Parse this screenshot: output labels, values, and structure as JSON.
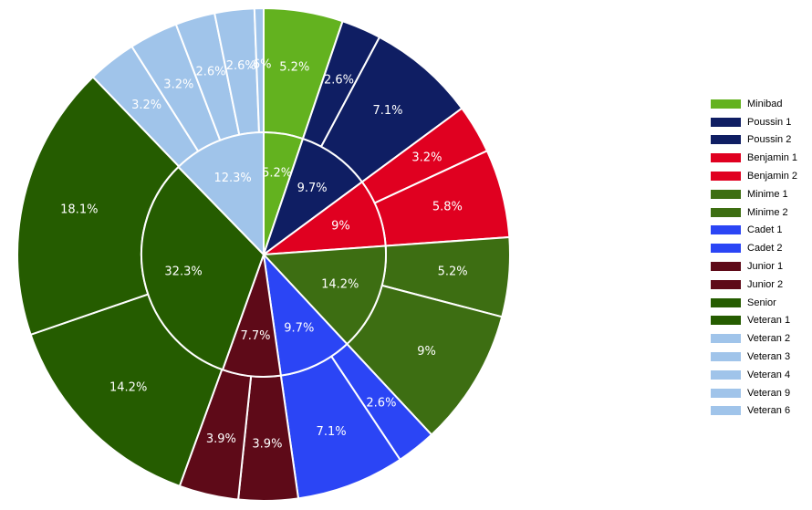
{
  "chart_data": {
    "type": "pie",
    "subtype": "nested-donut",
    "legend_position": "right",
    "outer_ring": {
      "categories": [
        "Minibad",
        "Poussin 1",
        "Poussin 2",
        "Benjamin 1",
        "Benjamin 2",
        "Minime 1",
        "Minime 2",
        "Cadet 1",
        "Cadet 2",
        "Junior 1",
        "Junior 2",
        "Senior",
        "Veteran 1",
        "Veteran 2",
        "Veteran 3",
        "Veteran 4",
        "Veteran 9",
        "Veteran 6"
      ],
      "values": [
        5.2,
        2.6,
        7.1,
        3.2,
        5.8,
        5.2,
        9,
        2.6,
        7.1,
        3.9,
        3.9,
        14.2,
        18.1,
        3.2,
        3.2,
        2.6,
        2.6,
        0.6
      ],
      "labels": [
        "5.2%",
        "2.6%",
        "7.1%",
        "3.2%",
        "5.8%",
        "5.2%",
        "9%",
        "2.6%",
        "7.1%",
        "3.9%",
        "3.9%",
        "14.2%",
        "18.1%",
        "3.2%",
        "3.2%",
        "2.6%",
        "2.6%",
        ".6%"
      ],
      "colors": [
        "#63b21f",
        "#0f1e63",
        "#0f1e63",
        "#e00020",
        "#e00020",
        "#3d6e12",
        "#3d6e12",
        "#2b45f5",
        "#2b45f5",
        "#5e0a18",
        "#5e0a18",
        "#255c00",
        "#255c00",
        "#a0c4ea",
        "#a0c4ea",
        "#a0c4ea",
        "#a0c4ea",
        "#a0c4ea"
      ]
    },
    "inner_ring": {
      "categories": [
        "Minibad",
        "Poussin",
        "Benjamin",
        "Minime",
        "Cadet",
        "Junior",
        "Senior/Veteran 1",
        "Veteran"
      ],
      "values": [
        5.2,
        9.7,
        9,
        14.2,
        9.7,
        7.7,
        32.3,
        12.3
      ],
      "labels": [
        "5.2%",
        "9.7%",
        "9%",
        "14.2%",
        "9.7%",
        "7.7%",
        "32.3%",
        "12.3%"
      ],
      "colors": [
        "#63b21f",
        "#0f1e63",
        "#e00020",
        "#3d6e12",
        "#2b45f5",
        "#5e0a18",
        "#255c00",
        "#a0c4ea"
      ]
    },
    "legend": [
      {
        "label": "Minibad",
        "color": "#63b21f"
      },
      {
        "label": "Poussin 1",
        "color": "#0f1e63"
      },
      {
        "label": "Poussin 2",
        "color": "#0f1e63"
      },
      {
        "label": "Benjamin 1",
        "color": "#e00020"
      },
      {
        "label": "Benjamin 2",
        "color": "#e00020"
      },
      {
        "label": "Minime 1",
        "color": "#3d6e12"
      },
      {
        "label": "Minime 2",
        "color": "#3d6e12"
      },
      {
        "label": "Cadet 1",
        "color": "#2b45f5"
      },
      {
        "label": "Cadet 2",
        "color": "#2b45f5"
      },
      {
        "label": "Junior 1",
        "color": "#5e0a18"
      },
      {
        "label": "Junior 2",
        "color": "#5e0a18"
      },
      {
        "label": "Senior",
        "color": "#255c00"
      },
      {
        "label": "Veteran 1",
        "color": "#255c00"
      },
      {
        "label": "Veteran 2",
        "color": "#a0c4ea"
      },
      {
        "label": "Veteran 3",
        "color": "#a0c4ea"
      },
      {
        "label": "Veteran 4",
        "color": "#a0c4ea"
      },
      {
        "label": "Veteran 9",
        "color": "#a0c4ea"
      },
      {
        "label": "Veteran 6",
        "color": "#a0c4ea"
      }
    ]
  }
}
